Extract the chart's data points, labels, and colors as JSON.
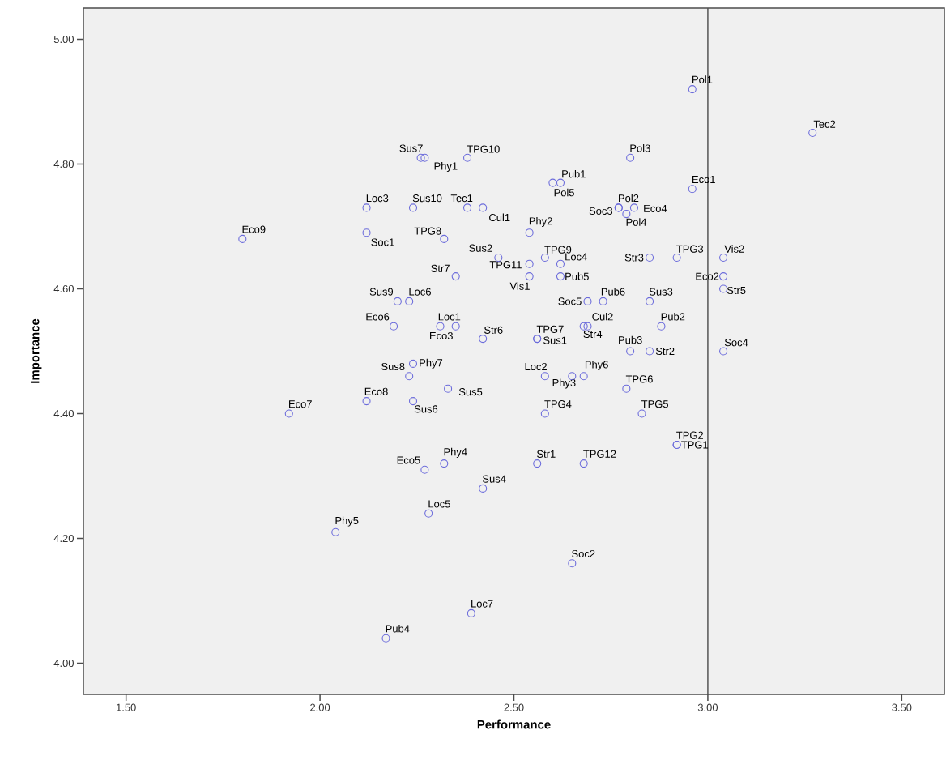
{
  "chart_data": {
    "type": "scatter",
    "xlabel": "Performance",
    "ylabel": "Importance",
    "xlim": [
      1.39,
      3.61
    ],
    "ylim": [
      3.95,
      5.05
    ],
    "xticks": [
      {
        "value": 1.5,
        "label": "1.50"
      },
      {
        "value": 2.0,
        "label": "2.00"
      },
      {
        "value": 2.5,
        "label": "2.50"
      },
      {
        "value": 3.0,
        "label": "3.00"
      },
      {
        "value": 3.5,
        "label": "3.50"
      }
    ],
    "yticks": [
      {
        "value": 4.0,
        "label": "4.00"
      },
      {
        "value": 4.2,
        "label": "4.20"
      },
      {
        "value": 4.4,
        "label": "4.40"
      },
      {
        "value": 4.6,
        "label": "4.60"
      },
      {
        "value": 4.8,
        "label": "4.80"
      },
      {
        "value": 5.0,
        "label": "5.00"
      }
    ],
    "grid": false,
    "marker": "circle",
    "ref_lines": [
      {
        "axis": "x",
        "value": 3.0,
        "color": "#555555"
      }
    ],
    "series": [
      {
        "color": "#6b6bdb",
        "x": [
          2.96,
          3.27,
          2.96,
          3.04,
          3.04,
          3.04,
          3.04,
          2.92,
          2.92,
          2.26,
          2.27,
          2.38,
          2.8,
          2.6,
          2.62,
          2.24,
          2.38,
          2.42,
          2.12,
          2.12,
          1.8,
          2.77,
          2.77,
          2.81,
          2.79,
          2.54,
          2.32,
          2.46,
          2.58,
          2.54,
          2.62,
          2.85,
          2.92,
          2.35,
          2.54,
          2.62,
          2.2,
          2.23,
          2.69,
          2.73,
          2.85,
          2.19,
          2.31,
          2.35,
          2.88,
          2.68,
          2.69,
          2.56,
          2.56,
          2.42,
          2.8,
          2.85,
          2.24,
          2.23,
          2.12,
          2.24,
          2.33,
          1.92,
          2.58,
          2.65,
          2.68,
          2.79,
          2.58,
          2.83,
          2.56,
          2.68,
          2.27,
          2.32,
          2.42,
          2.28,
          2.04,
          2.65,
          2.39,
          2.17
        ],
        "values": [
          4.92,
          4.85,
          4.76,
          4.65,
          4.62,
          4.6,
          4.5,
          4.35,
          4.35,
          4.81,
          4.81,
          4.81,
          4.81,
          4.77,
          4.77,
          4.73,
          4.73,
          4.73,
          4.73,
          4.69,
          4.68,
          4.73,
          4.73,
          4.73,
          4.72,
          4.69,
          4.68,
          4.65,
          4.65,
          4.64,
          4.64,
          4.65,
          4.65,
          4.62,
          4.62,
          4.62,
          4.58,
          4.58,
          4.58,
          4.58,
          4.58,
          4.54,
          4.54,
          4.54,
          4.54,
          4.54,
          4.54,
          4.52,
          4.52,
          4.52,
          4.5,
          4.5,
          4.48,
          4.46,
          4.42,
          4.42,
          4.44,
          4.4,
          4.46,
          4.46,
          4.46,
          4.44,
          4.4,
          4.4,
          4.32,
          4.32,
          4.31,
          4.32,
          4.28,
          4.24,
          4.21,
          4.16,
          4.08,
          4.04
        ]
      }
    ],
    "annotations": [
      {
        "text": "Pol1",
        "x": 2.96,
        "y": 4.92
      },
      {
        "text": "Tec2",
        "x": 3.27,
        "y": 4.85
      },
      {
        "text": "Eco1",
        "x": 2.96,
        "y": 4.76
      },
      {
        "text": "Vis2",
        "x": 3.04,
        "y": 4.65
      },
      {
        "text": "Eco2",
        "x": 3.04,
        "y": 4.62
      },
      {
        "text": "Str5",
        "x": 3.04,
        "y": 4.6
      },
      {
        "text": "Soc4",
        "x": 3.04,
        "y": 4.5
      },
      {
        "text": "TPG2",
        "x": 2.92,
        "y": 4.35
      },
      {
        "text": "TPG1",
        "x": 2.92,
        "y": 4.35
      },
      {
        "text": "Sus7",
        "x": 2.26,
        "y": 4.81
      },
      {
        "text": "Phy1",
        "x": 2.27,
        "y": 4.81
      },
      {
        "text": "TPG10",
        "x": 2.38,
        "y": 4.81
      },
      {
        "text": "Pol3",
        "x": 2.8,
        "y": 4.81
      },
      {
        "text": "Pol5",
        "x": 2.6,
        "y": 4.77
      },
      {
        "text": "Pub1",
        "x": 2.62,
        "y": 4.77
      },
      {
        "text": "Sus10",
        "x": 2.24,
        "y": 4.73
      },
      {
        "text": "Tec1",
        "x": 2.38,
        "y": 4.73
      },
      {
        "text": "Cul1",
        "x": 2.42,
        "y": 4.73
      },
      {
        "text": "Loc3",
        "x": 2.12,
        "y": 4.73
      },
      {
        "text": "Soc1",
        "x": 2.12,
        "y": 4.69
      },
      {
        "text": "Eco9",
        "x": 1.8,
        "y": 4.68
      },
      {
        "text": "Pol2",
        "x": 2.77,
        "y": 4.73
      },
      {
        "text": "Soc3",
        "x": 2.77,
        "y": 4.73
      },
      {
        "text": "Eco4",
        "x": 2.81,
        "y": 4.73
      },
      {
        "text": "Pol4",
        "x": 2.79,
        "y": 4.72
      },
      {
        "text": "Phy2",
        "x": 2.54,
        "y": 4.69
      },
      {
        "text": "TPG8",
        "x": 2.32,
        "y": 4.68
      },
      {
        "text": "Sus2",
        "x": 2.46,
        "y": 4.65
      },
      {
        "text": "TPG9",
        "x": 2.58,
        "y": 4.65
      },
      {
        "text": "TPG11",
        "x": 2.54,
        "y": 4.64
      },
      {
        "text": "Loc4",
        "x": 2.62,
        "y": 4.64
      },
      {
        "text": "Str3",
        "x": 2.85,
        "y": 4.65
      },
      {
        "text": "TPG3",
        "x": 2.92,
        "y": 4.65
      },
      {
        "text": "Str7",
        "x": 2.35,
        "y": 4.62
      },
      {
        "text": "Vis1",
        "x": 2.54,
        "y": 4.62
      },
      {
        "text": "Pub5",
        "x": 2.62,
        "y": 4.62
      },
      {
        "text": "Sus9",
        "x": 2.2,
        "y": 4.58
      },
      {
        "text": "Loc6",
        "x": 2.23,
        "y": 4.58
      },
      {
        "text": "Soc5",
        "x": 2.69,
        "y": 4.58
      },
      {
        "text": "Pub6",
        "x": 2.73,
        "y": 4.58
      },
      {
        "text": "Sus3",
        "x": 2.85,
        "y": 4.58
      },
      {
        "text": "Eco6",
        "x": 2.19,
        "y": 4.54
      },
      {
        "text": "Loc1",
        "x": 2.31,
        "y": 4.54
      },
      {
        "text": "Eco3",
        "x": 2.35,
        "y": 4.54
      },
      {
        "text": "Pub2",
        "x": 2.88,
        "y": 4.54
      },
      {
        "text": "Str4",
        "x": 2.68,
        "y": 4.54
      },
      {
        "text": "Cul2",
        "x": 2.69,
        "y": 4.54
      },
      {
        "text": "TPG7",
        "x": 2.56,
        "y": 4.52
      },
      {
        "text": "Sus1",
        "x": 2.56,
        "y": 4.52
      },
      {
        "text": "Str6",
        "x": 2.42,
        "y": 4.52
      },
      {
        "text": "Pub3",
        "x": 2.8,
        "y": 4.5
      },
      {
        "text": "Str2",
        "x": 2.85,
        "y": 4.5
      },
      {
        "text": "Phy7",
        "x": 2.24,
        "y": 4.48
      },
      {
        "text": "Sus8",
        "x": 2.23,
        "y": 4.46
      },
      {
        "text": "Eco8",
        "x": 2.12,
        "y": 4.42
      },
      {
        "text": "Sus6",
        "x": 2.24,
        "y": 4.42
      },
      {
        "text": "Sus5",
        "x": 2.33,
        "y": 4.44
      },
      {
        "text": "Eco7",
        "x": 1.92,
        "y": 4.4
      },
      {
        "text": "Loc2",
        "x": 2.58,
        "y": 4.46
      },
      {
        "text": "Phy3",
        "x": 2.65,
        "y": 4.46
      },
      {
        "text": "Phy6",
        "x": 2.68,
        "y": 4.46
      },
      {
        "text": "TPG6",
        "x": 2.79,
        "y": 4.44
      },
      {
        "text": "TPG4",
        "x": 2.58,
        "y": 4.4
      },
      {
        "text": "TPG5",
        "x": 2.83,
        "y": 4.4
      },
      {
        "text": "Str1",
        "x": 2.56,
        "y": 4.32
      },
      {
        "text": "TPG12",
        "x": 2.68,
        "y": 4.32
      },
      {
        "text": "Eco5",
        "x": 2.27,
        "y": 4.31
      },
      {
        "text": "Phy4",
        "x": 2.32,
        "y": 4.32
      },
      {
        "text": "Sus4",
        "x": 2.42,
        "y": 4.28
      },
      {
        "text": "Loc5",
        "x": 2.28,
        "y": 4.24
      },
      {
        "text": "Phy5",
        "x": 2.04,
        "y": 4.21
      },
      {
        "text": "Soc2",
        "x": 2.65,
        "y": 4.16
      },
      {
        "text": "Loc7",
        "x": 2.39,
        "y": 4.08
      },
      {
        "text": "Pub4",
        "x": 2.17,
        "y": 4.04
      }
    ]
  }
}
